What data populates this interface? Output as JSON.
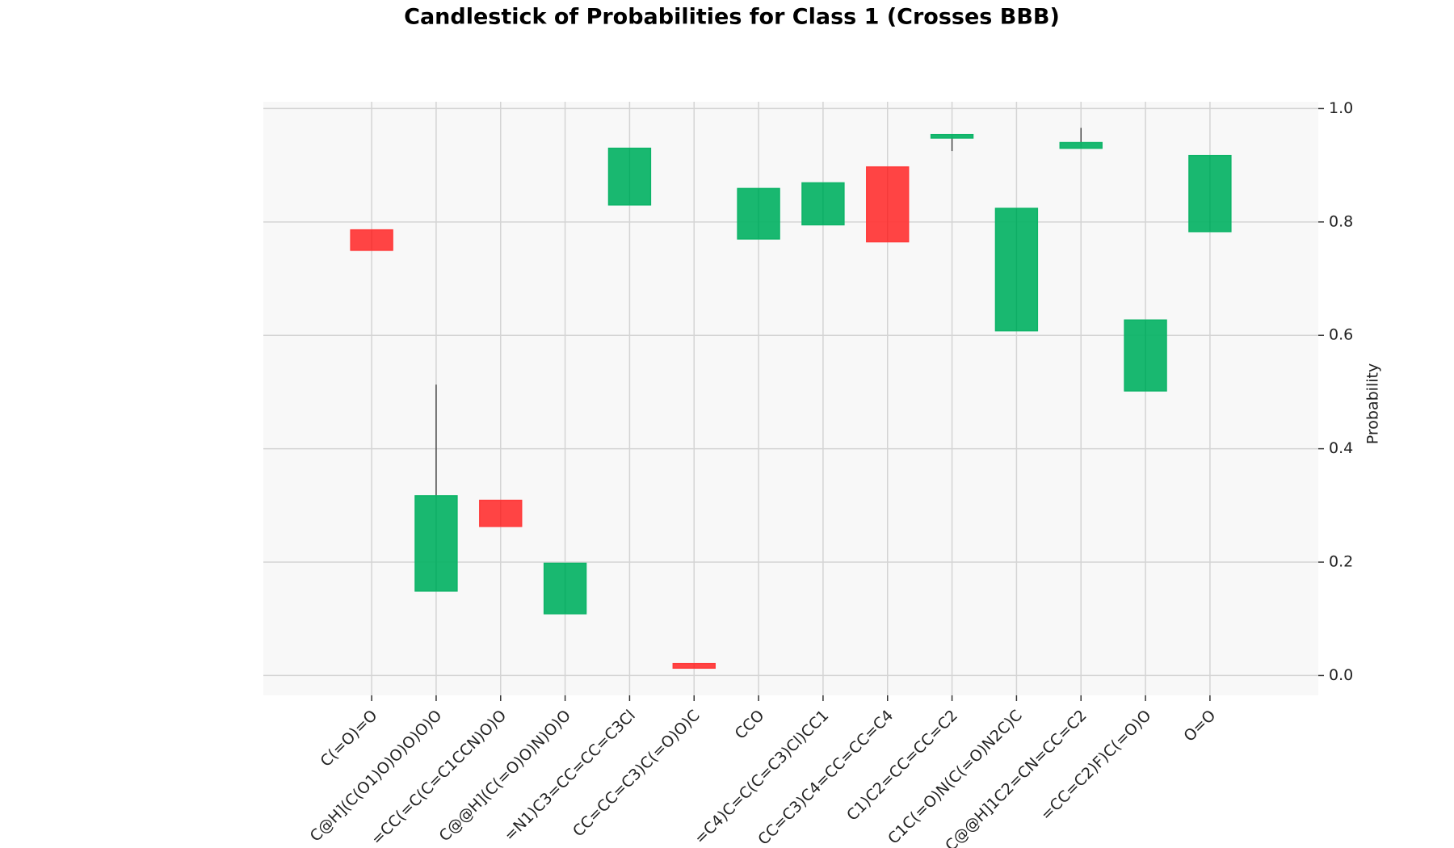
{
  "chart_data": {
    "type": "candlestick",
    "title": "Candlestick of Probabilities for Class 1 (Crosses BBB)",
    "y_label": "Probability",
    "categories": [
      "C(=O)=O",
      "C@H](C(O1)O)O)O)O)O",
      "=CC(=C(C=C1CCN)O)O",
      "C@@H](C(=O)O)N)O)O",
      "=N1)C3=CC=CC=C3Cl",
      "CC=CC=C3)C(=O)O)C",
      "CCO",
      "=C4)C=C(C=C3)Cl)CC1",
      "CC=C3)C4=CC=CC=C4",
      "C1)C2=CC=CC=C2",
      "C1C(=O)N(C(=O)N2C)C",
      "C@@H]1C2=CN=CC=C2",
      "=CC=C2)F)C(=O)O",
      "O=O"
    ],
    "open": [
      0.786,
      0.149,
      0.309,
      0.109,
      0.83,
      0.021,
      0.77,
      0.795,
      0.897,
      0.948,
      0.608,
      0.93,
      0.502,
      0.783
    ],
    "high": [
      0.786,
      0.513,
      0.309,
      0.198,
      0.93,
      0.021,
      0.859,
      0.869,
      0.897,
      0.954,
      0.824,
      0.966,
      0.627,
      0.917
    ],
    "low": [
      0.75,
      0.149,
      0.263,
      0.109,
      0.83,
      0.013,
      0.77,
      0.795,
      0.765,
      0.925,
      0.608,
      0.93,
      0.502,
      0.783
    ],
    "close": [
      0.75,
      0.317,
      0.263,
      0.198,
      0.93,
      0.013,
      0.859,
      0.869,
      0.765,
      0.954,
      0.824,
      0.94,
      0.627,
      0.917
    ],
    "increasing_color": "#0db468",
    "decreasing_color": "#ff3a3a",
    "ylim": [
      -0.035,
      1.012
    ],
    "yticks": [
      {
        "value": 0,
        "label": "0.0"
      },
      0.2,
      0.4,
      0.6,
      0.8,
      {
        "value": 1,
        "label": "1.0"
      }
    ],
    "grid": true,
    "y_axis_side": "right"
  }
}
